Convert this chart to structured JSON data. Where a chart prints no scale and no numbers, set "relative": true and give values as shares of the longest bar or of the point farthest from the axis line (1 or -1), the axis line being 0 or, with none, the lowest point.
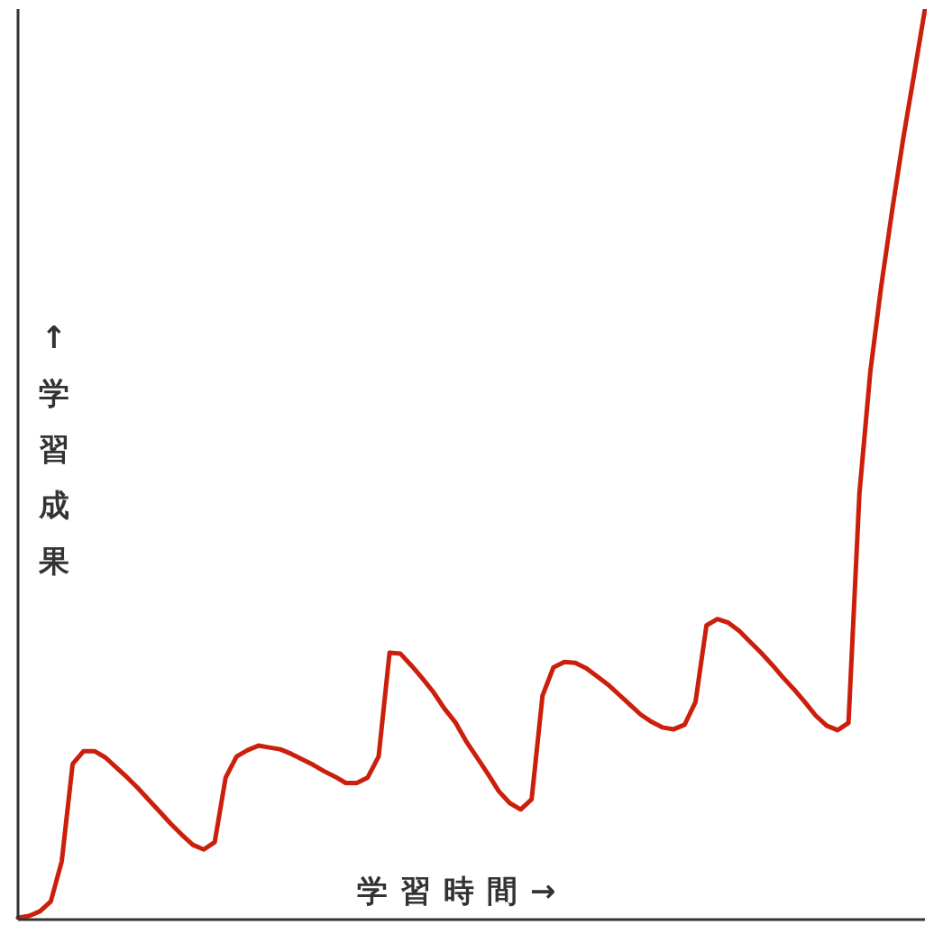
{
  "chart_data": {
    "type": "line",
    "xlabel": "学習時間→",
    "ylabel": "↑学習成果",
    "relative": true,
    "color": "#cc1f0b",
    "marker": "none",
    "line_style": "solid",
    "tick_labels": false,
    "categories": [
      null,
      null,
      null,
      null,
      null,
      null,
      null,
      null,
      null,
      null,
      null,
      null,
      null,
      null,
      null,
      null,
      null,
      null,
      null,
      null,
      null,
      null,
      null,
      null,
      null,
      null,
      null,
      null,
      null,
      null,
      null,
      null,
      null,
      null,
      null,
      null,
      null,
      null,
      null,
      null,
      null,
      null,
      null,
      null,
      null,
      null,
      null,
      null,
      null,
      null,
      null,
      null,
      null,
      null,
      null,
      null,
      null,
      null,
      null,
      null,
      null,
      null,
      null,
      null,
      null,
      null,
      null,
      null,
      null,
      null,
      null,
      null,
      null,
      null,
      null,
      null,
      null,
      null,
      null,
      null,
      null,
      null,
      null,
      null
    ],
    "values": [
      0.002,
      0.004,
      0.009,
      0.02,
      0.064,
      0.171,
      0.185,
      0.185,
      0.178,
      0.167,
      0.156,
      0.144,
      0.131,
      0.118,
      0.105,
      0.093,
      0.082,
      0.077,
      0.085,
      0.156,
      0.179,
      0.186,
      0.191,
      0.189,
      0.187,
      0.182,
      0.176,
      0.17,
      0.163,
      0.157,
      0.15,
      0.15,
      0.156,
      0.179,
      0.293,
      0.292,
      0.279,
      0.265,
      0.25,
      0.232,
      0.217,
      0.196,
      0.178,
      0.16,
      0.141,
      0.128,
      0.121,
      0.132,
      0.246,
      0.277,
      0.283,
      0.282,
      0.276,
      0.267,
      0.258,
      0.247,
      0.236,
      0.225,
      0.217,
      0.211,
      0.209,
      0.214,
      0.239,
      0.323,
      0.33,
      0.326,
      0.317,
      0.305,
      0.293,
      0.28,
      0.266,
      0.253,
      0.239,
      0.224,
      0.213,
      0.208,
      0.216,
      0.468,
      0.602,
      0.696,
      0.779,
      0.857,
      0.928,
      1
    ]
  }
}
